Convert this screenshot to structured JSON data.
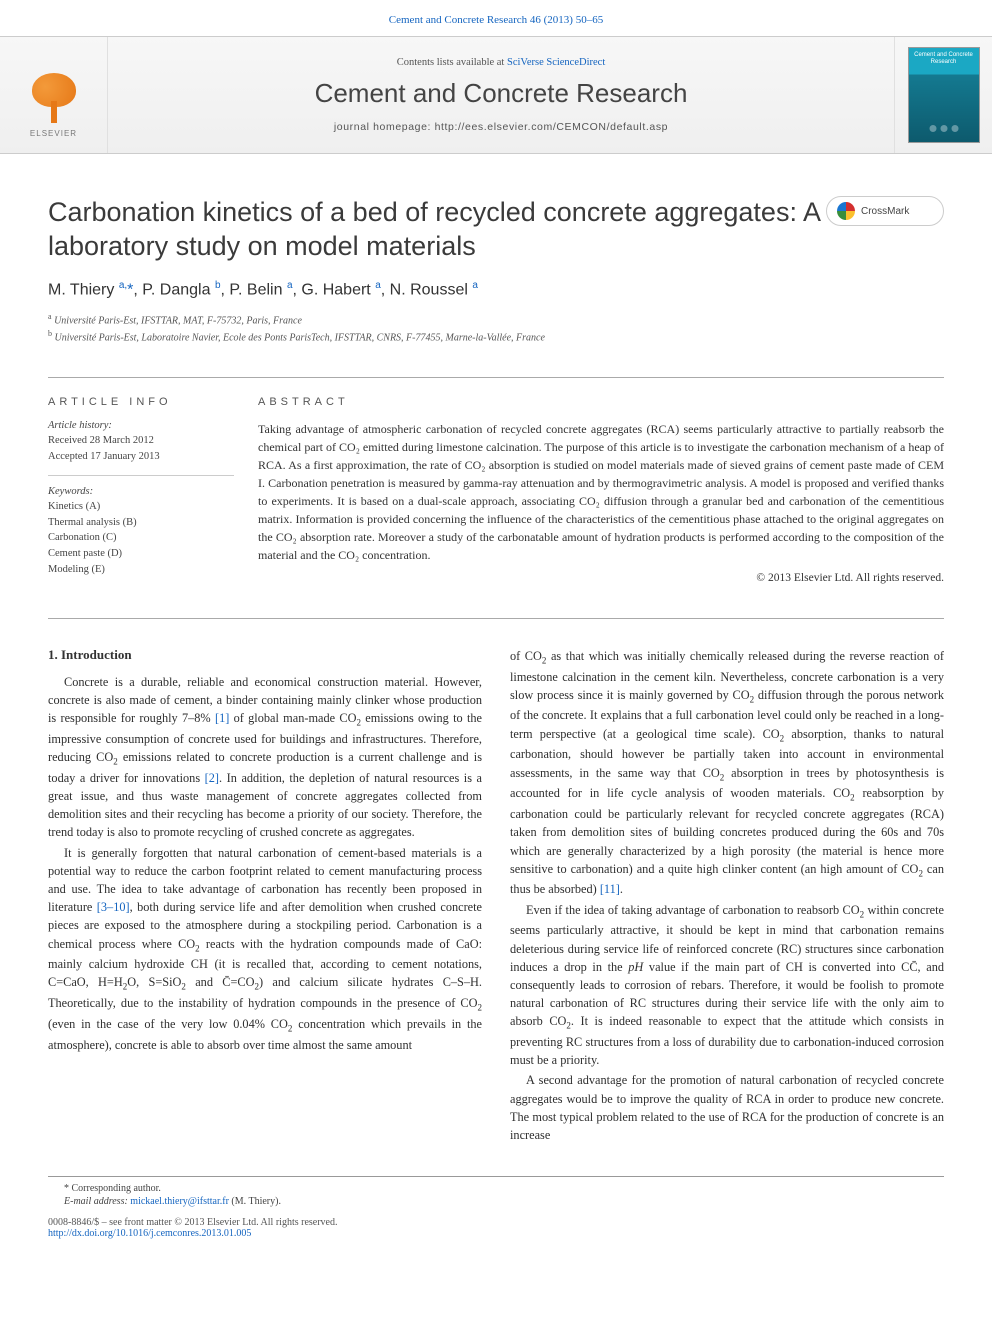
{
  "headerLink": {
    "prefix": "",
    "journal": "Cement and Concrete Research 46 (2013) 50–65"
  },
  "banner": {
    "contentsPrefix": "Contents lists available at ",
    "contentsLink": "SciVerse ScienceDirect",
    "journalName": "Cement and Concrete Research",
    "homepage": "journal homepage: http://ees.elsevier.com/CEMCON/default.asp",
    "publisherWord": "ELSEVIER",
    "coverTitle": "Cement and Concrete Research"
  },
  "crossmark": {
    "label": "CrossMark"
  },
  "title": "Carbonation kinetics of a bed of recycled concrete aggregates: A laboratory study on model materials",
  "authors": "M. Thiery <sup>a,</sup><span class=\"star\">*</span>, P. Dangla <sup>b</sup>, P. Belin <sup>a</sup>, G. Habert <sup>a</sup>, N. Roussel <sup>a</sup>",
  "affiliations": [
    {
      "sup": "a",
      "text": "Université Paris-Est, IFSTTAR, MAT, F-75732, Paris, France"
    },
    {
      "sup": "b",
      "text": "Université Paris-Est, Laboratoire Navier, Ecole des Ponts ParisTech, IFSTTAR, CNRS, F-77455, Marne-la-Vallée, France"
    }
  ],
  "articleInfo": {
    "heading": "article info",
    "historyLabel": "Article history:",
    "received": "Received 28 March 2012",
    "accepted": "Accepted 17 January 2013",
    "keywordsLabel": "Keywords:",
    "keywords": [
      "Kinetics (A)",
      "Thermal analysis (B)",
      "Carbonation (C)",
      "Cement paste (D)",
      "Modeling (E)"
    ]
  },
  "abstract": {
    "heading": "abstract",
    "text": "Taking advantage of atmospheric carbonation of recycled concrete aggregates (RCA) seems particularly attractive to partially reabsorb the chemical part of CO₂ emitted during limestone calcination. The purpose of this article is to investigate the carbonation mechanism of a heap of RCA. As a first approximation, the rate of CO₂ absorption is studied on model materials made of sieved grains of cement paste made of CEM I. Carbonation penetration is measured by gamma-ray attenuation and by thermogravimetric analysis. A model is proposed and verified thanks to experiments. It is based on a dual-scale approach, associating CO₂ diffusion through a granular bed and carbonation of the cementitious matrix. Information is provided concerning the influence of the characteristics of the cementitious phase attached to the original aggregates on the CO₂ absorption rate. Moreover a study of the carbonatable amount of hydration products is performed according to the composition of the material and the CO₂ concentration.",
    "copyright": "© 2013 Elsevier Ltd. All rights reserved."
  },
  "section1": {
    "heading": "1. Introduction"
  },
  "paragraphs": {
    "p1": "Concrete is a durable, reliable and economical construction material. However, concrete is also made of cement, a binder containing mainly clinker whose production is responsible for roughly 7–8% [1] of global man-made CO₂ emissions owing to the impressive consumption of concrete used for buildings and infrastructures. Therefore, reducing CO₂ emissions related to concrete production is a current challenge and is today a driver for innovations [2]. In addition, the depletion of natural resources is a great issue, and thus waste management of concrete aggregates collected from demolition sites and their recycling has become a priority of our society. Therefore, the trend today is also to promote recycling of crushed concrete as aggregates.",
    "p2": "It is generally forgotten that natural carbonation of cement-based materials is a potential way to reduce the carbon footprint related to cement manufacturing process and use. The idea to take advantage of carbonation has recently been proposed in literature [3–10], both during service life and after demolition when crushed concrete pieces are exposed to the atmosphere during a stockpiling period. Carbonation is a chemical process where CO₂ reacts with the hydration compounds made of CaO: mainly calcium hydroxide CH (it is recalled that, according to cement notations, C=CaO, H=H₂O, S=SiO₂ and C̄=CO₂) and calcium silicate hydrates C–S–H. Theoretically, due to the instability of hydration compounds in the presence of CO₂ (even in the case of the very low 0.04% CO₂ concentration which prevails in the atmosphere), concrete is able to absorb over time almost the same amount",
    "p3": "of CO₂ as that which was initially chemically released during the reverse reaction of limestone calcination in the cement kiln. Nevertheless, concrete carbonation is a very slow process since it is mainly governed by CO₂ diffusion through the porous network of the concrete. It explains that a full carbonation level could only be reached in a long-term perspective (at a geological time scale). CO₂ absorption, thanks to natural carbonation, should however be partially taken into account in environmental assessments, in the same way that CO₂ absorption in trees by photosynthesis is accounted for in life cycle analysis of wooden materials. CO₂ reabsorption by carbonation could be particularly relevant for recycled concrete aggregates (RCA) taken from demolition sites of building concretes produced during the 60s and 70s which are generally characterized by a high porosity (the material is hence more sensitive to carbonation) and a quite high clinker content (an high amount of CO₂ can thus be absorbed) [11].",
    "p4": "Even if the idea of taking advantage of carbonation to reabsorb CO₂ within concrete seems particularly attractive, it should be kept in mind that carbonation remains deleterious during service life of reinforced concrete (RC) structures since carbonation induces a drop in the pH value if the main part of CH is converted into CC̄, and consequently leads to corrosion of rebars. Therefore, it would be foolish to promote natural carbonation of RC structures during their service life with the only aim to absorb CO₂. It is indeed reasonable to expect that the attitude which consists in preventing RC structures from a loss of durability due to carbonation-induced corrosion must be a priority.",
    "p5": "A second advantage for the promotion of natural carbonation of recycled concrete aggregates would be to improve the quality of RCA in order to produce new concrete. The most typical problem related to the use of RCA for the production of concrete is an increase"
  },
  "refLinks": {
    "r1": "[1]",
    "r2": "[2]",
    "r3_10": "[3–10]",
    "r11": "[11]"
  },
  "footnotes": {
    "corr": "* Corresponding author.",
    "emailLabel": "E-mail address: ",
    "email": "mickael.thiery@ifsttar.fr",
    "emailSuffix": " (M. Thiery)."
  },
  "footer": {
    "line1": "0008-8846/$ – see front matter © 2013 Elsevier Ltd. All rights reserved.",
    "doi": "http://dx.doi.org/10.1016/j.cemconres.2013.01.005"
  },
  "colors": {
    "link": "#1565c0",
    "elsevierOrange": "#e67817",
    "coverTop": "#1ba8c4",
    "coverBottom": "#0d5a6d"
  }
}
